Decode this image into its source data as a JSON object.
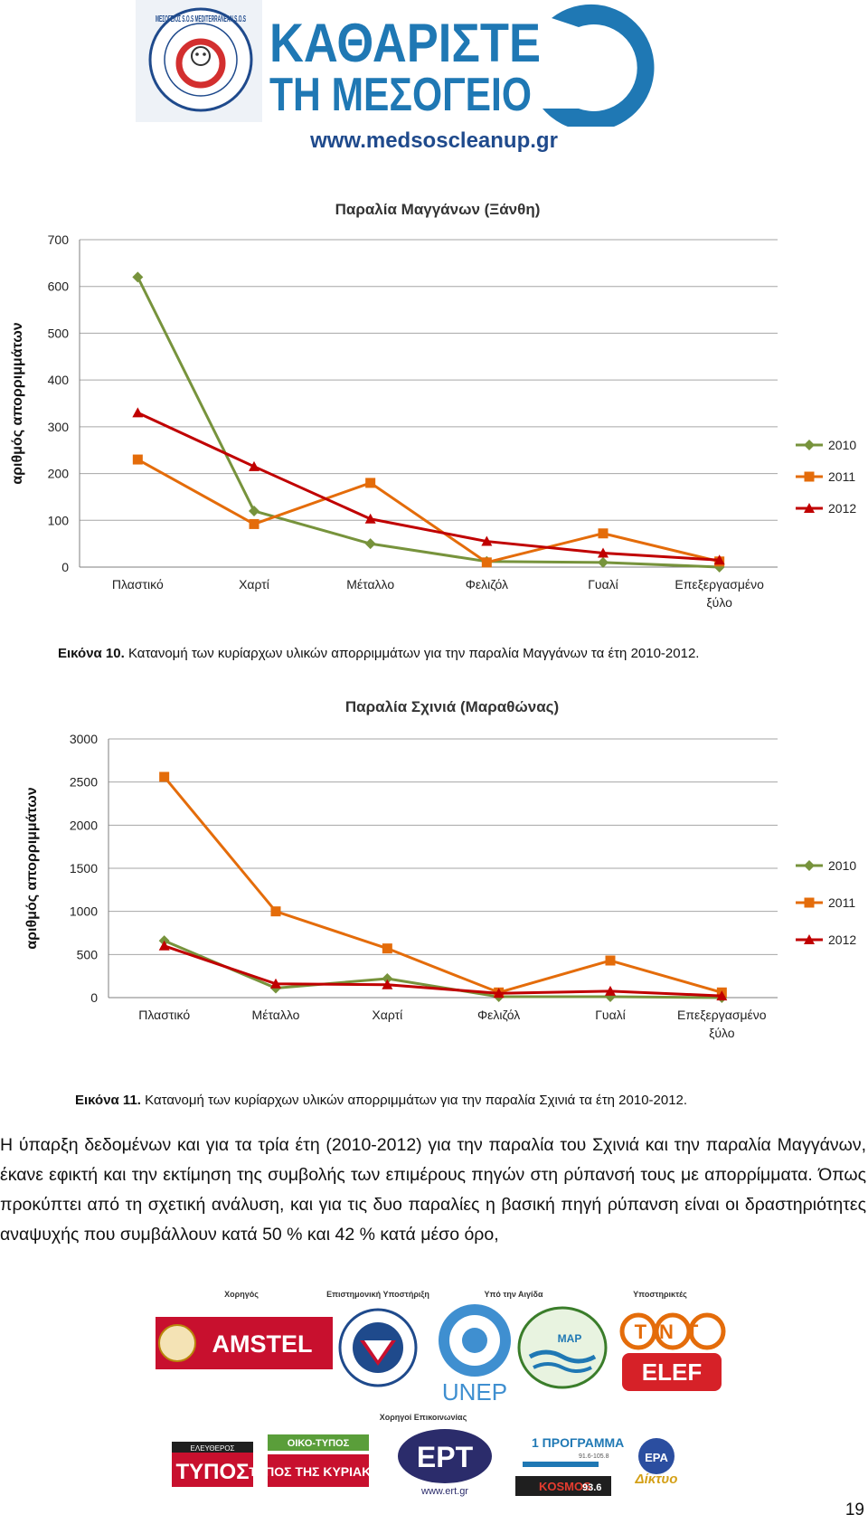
{
  "header": {
    "seal_text": "ΜΕΣΟΓΕΙΟΣ S.O.S MEDITERRANEAN S.O.S",
    "logo_line1": "ΚΑΘΑΡΙΣΤΕ",
    "logo_line2": "ΤΗ ΜΕΣΟΓΕΙΟ",
    "url": "www.medsoscleanup.gr"
  },
  "colors": {
    "brand_blue": "#1f78b4",
    "series_2010": "#77933c",
    "series_2011": "#e46c0a",
    "series_2012": "#c00000",
    "grid": "#a6a6a6"
  },
  "chart_data": [
    {
      "type": "line",
      "title": "Παραλία Μαγγάνων (Ξάνθη)",
      "ylabel": "αριθμός απορριμμάτων",
      "xlabel": "",
      "categories": [
        "Πλαστικό",
        "Χαρτί",
        "Μέταλλο",
        "Φελιζόλ",
        "Γυαλί",
        "Επεξεργασμένο ξύλο"
      ],
      "ylim": [
        0,
        700
      ],
      "yticks": [
        0,
        100,
        200,
        300,
        400,
        500,
        600,
        700
      ],
      "grid": true,
      "legend": "right",
      "series": [
        {
          "name": "2010",
          "marker": "diamond",
          "values": [
            620,
            120,
            50,
            12,
            10,
            0
          ]
        },
        {
          "name": "2011",
          "marker": "square",
          "values": [
            230,
            92,
            180,
            10,
            72,
            12
          ]
        },
        {
          "name": "2012",
          "marker": "triangle",
          "values": [
            330,
            215,
            103,
            55,
            30,
            15
          ]
        }
      ]
    },
    {
      "type": "line",
      "title": "Παραλία Σχινιά (Μαραθώνας)",
      "ylabel": "αριθμός απορριμμάτων",
      "xlabel": "",
      "categories": [
        "Πλαστικό",
        "Μέταλλο",
        "Χαρτί",
        "Φελιζόλ",
        "Γυαλί",
        "Επεξεργασμένο ξύλο"
      ],
      "ylim": [
        0,
        3000
      ],
      "yticks": [
        0,
        500,
        1000,
        1500,
        2000,
        2500,
        3000
      ],
      "grid": true,
      "legend": "right",
      "series": [
        {
          "name": "2010",
          "marker": "diamond",
          "values": [
            660,
            110,
            220,
            10,
            10,
            0
          ]
        },
        {
          "name": "2011",
          "marker": "square",
          "values": [
            2560,
            1000,
            570,
            60,
            430,
            60
          ]
        },
        {
          "name": "2012",
          "marker": "triangle",
          "values": [
            600,
            160,
            150,
            50,
            75,
            20
          ]
        }
      ]
    }
  ],
  "captions": [
    {
      "label": "Εικόνα 10.",
      "text": " Κατανομή των κυρίαρχων υλικών απορριμμάτων για την παραλία Μαγγάνων τα έτη 2010-2012."
    },
    {
      "label": "Εικόνα 11.",
      "text": " Κατανομή των κυρίαρχων υλικών απορριμμάτων για την παραλία Σχινιά τα έτη 2010-2012."
    }
  ],
  "body_text": "Η ύπαρξη δεδομένων και για τα τρία έτη (2010-2012) για την παραλία του Σχινιά και την παραλία Μαγγάνων, έκανε εφικτή και την εκτίμηση της συμβολής των επιμέρους πηγών στη ρύπανσή τους με απορρίμματα. Όπως προκύπτει από τη σχετική ανάλυση, και για τις δυο παραλίες η βασική πηγή ρύπανση είναι οι δραστηριότητες αναψυχής που συμβάλλουν κατά 50 % και 42 % κατά μέσο όρο,",
  "footer": {
    "groups": [
      "Χορηγός",
      "Επιστημονική Υποστήριξη",
      "Υπό την Αιγίδα",
      "Υποστηρικτές"
    ],
    "media_label": "Χορηγοί Επικοινωνίας",
    "sponsors": {
      "amstel": "AMSTEL",
      "unep": "UNEP",
      "map": "MAP",
      "tnt": "TNT",
      "elef": "ELEF",
      "typos_top": "ΕΛΕΥΘΕΡΟΣ",
      "typos": "ΤΥΠΟΣ",
      "oikotypos": "ΟΙΚΟ-ΤΥΠΟΣ",
      "typos_kyriakis": "ΤΥΠΟΣ ΤΗΣ ΚΥΡΙΑΚΗΣ",
      "ert": "EPT",
      "ert_url": "www.ert.gr",
      "programma": "1 ΠΡΟΓΡΑΜΜΑ",
      "programma_sub": "91.6-105.8",
      "kosmos": "KOSMOS",
      "kosmos_freq": "93.6",
      "era": "ΕΡΑ",
      "diktyo": "Δίκτυο"
    }
  },
  "page_number": "19"
}
